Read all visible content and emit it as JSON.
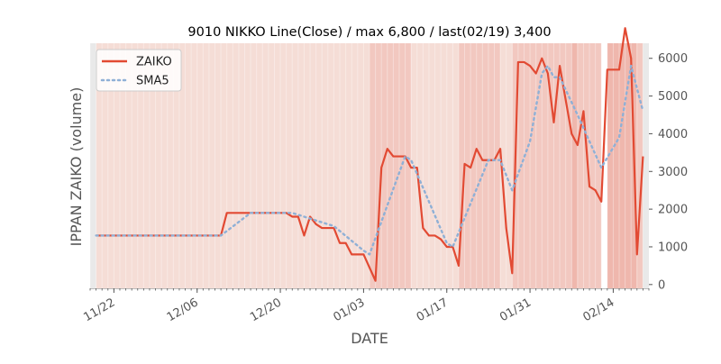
{
  "chart_data": {
    "type": "line",
    "title": "9010 NIKKO Line(Close) / max 6,800 / last(02/19) 3,400",
    "xlabel": "DATE",
    "ylabel": "IPPAN ZAIKO (volume)",
    "x_start": "2021-11-18",
    "x_end": "2022-02-20",
    "ylim": [
      -100,
      6400
    ],
    "y_ticks": [
      0,
      1000,
      2000,
      3000,
      4000,
      5000,
      6000
    ],
    "y_tick_labels": [
      "0",
      "1000",
      "2000",
      "3000",
      "4000",
      "5000",
      "6000"
    ],
    "x_ticks": [
      "2021-11-22",
      "2021-12-06",
      "2021-12-20",
      "2022-01-03",
      "2022-01-17",
      "2022-01-31",
      "2022-02-14"
    ],
    "x_tick_labels": [
      "11/22",
      "12/06",
      "12/20",
      "01/03",
      "01/17",
      "01/31",
      "02/14"
    ],
    "grid": false,
    "legend_position": "top-left",
    "colors": {
      "zaiko": "#e24a33",
      "sma5": "#8fb0d6",
      "band_light": "#f5ddd6",
      "band_mid": "#f2c8c0",
      "band_dark": "#efb7ad",
      "band_gray": "#e9e9e9"
    },
    "series": [
      {
        "name": "ZAIKO",
        "style": "solid",
        "points": [
          [
            "2021-11-19",
            1300
          ],
          [
            "2021-12-10",
            1300
          ],
          [
            "2021-12-11",
            1900
          ],
          [
            "2021-12-21",
            1900
          ],
          [
            "2021-12-22",
            1800
          ],
          [
            "2021-12-23",
            1800
          ],
          [
            "2021-12-24",
            1300
          ],
          [
            "2021-12-25",
            1800
          ],
          [
            "2021-12-26",
            1600
          ],
          [
            "2021-12-27",
            1500
          ],
          [
            "2021-12-29",
            1500
          ],
          [
            "2021-12-30",
            1100
          ],
          [
            "2021-12-31",
            1100
          ],
          [
            "2022-01-01",
            800
          ],
          [
            "2022-01-03",
            800
          ],
          [
            "2022-01-05",
            100
          ],
          [
            "2022-01-06",
            3100
          ],
          [
            "2022-01-07",
            3600
          ],
          [
            "2022-01-08",
            3400
          ],
          [
            "2022-01-10",
            3400
          ],
          [
            "2022-01-11",
            3100
          ],
          [
            "2022-01-12",
            3100
          ],
          [
            "2022-01-13",
            1500
          ],
          [
            "2022-01-14",
            1300
          ],
          [
            "2022-01-15",
            1300
          ],
          [
            "2022-01-16",
            1200
          ],
          [
            "2022-01-17",
            1000
          ],
          [
            "2022-01-18",
            1000
          ],
          [
            "2022-01-19",
            500
          ],
          [
            "2022-01-20",
            3200
          ],
          [
            "2022-01-21",
            3100
          ],
          [
            "2022-01-22",
            3600
          ],
          [
            "2022-01-23",
            3300
          ],
          [
            "2022-01-24",
            3300
          ],
          [
            "2022-01-25",
            3300
          ],
          [
            "2022-01-26",
            3600
          ],
          [
            "2022-01-27",
            1500
          ],
          [
            "2022-01-28",
            300
          ],
          [
            "2022-01-29",
            5900
          ],
          [
            "2022-01-30",
            5900
          ],
          [
            "2022-01-31",
            5800
          ],
          [
            "2022-02-01",
            5600
          ],
          [
            "2022-02-02",
            6000
          ],
          [
            "2022-02-03",
            5600
          ],
          [
            "2022-02-04",
            4300
          ],
          [
            "2022-02-05",
            5800
          ],
          [
            "2022-02-06",
            4900
          ],
          [
            "2022-02-07",
            4000
          ],
          [
            "2022-02-08",
            3700
          ],
          [
            "2022-02-09",
            4600
          ],
          [
            "2022-02-10",
            2600
          ],
          [
            "2022-02-11",
            2500
          ],
          [
            "2022-02-12",
            2200
          ],
          [
            "2022-02-13",
            5700
          ],
          [
            "2022-02-15",
            5700
          ],
          [
            "2022-02-16",
            6800
          ],
          [
            "2022-02-17",
            6000
          ],
          [
            "2022-02-18",
            800
          ],
          [
            "2022-02-19",
            3400
          ]
        ]
      },
      {
        "name": "SMA5",
        "style": "dotted",
        "points": [
          [
            "2021-11-19",
            1300
          ],
          [
            "2021-12-10",
            1300
          ],
          [
            "2021-12-15",
            1900
          ],
          [
            "2021-12-22",
            1900
          ],
          [
            "2021-12-29",
            1550
          ],
          [
            "2022-01-03",
            900
          ],
          [
            "2022-01-04",
            800
          ],
          [
            "2022-01-10",
            3400
          ],
          [
            "2022-01-11",
            3300
          ],
          [
            "2022-01-17",
            1100
          ],
          [
            "2022-01-18",
            1000
          ],
          [
            "2022-01-24",
            3300
          ],
          [
            "2022-01-26",
            3300
          ],
          [
            "2022-01-28",
            2500
          ],
          [
            "2022-01-31",
            3800
          ],
          [
            "2022-02-02",
            5600
          ],
          [
            "2022-02-03",
            5800
          ],
          [
            "2022-02-04",
            5500
          ],
          [
            "2022-02-05",
            5500
          ],
          [
            "2022-02-08",
            4500
          ],
          [
            "2022-02-12",
            3100
          ],
          [
            "2022-02-15",
            3900
          ],
          [
            "2022-02-17",
            5800
          ],
          [
            "2022-02-19",
            4600
          ]
        ]
      }
    ],
    "bands": [
      [
        "2021-11-18",
        "2021-11-19",
        "band_gray"
      ],
      [
        "2021-11-19",
        "2022-01-04",
        "band_light"
      ],
      [
        "2022-01-04",
        "2022-01-11",
        "band_mid"
      ],
      [
        "2022-01-11",
        "2022-01-18",
        "band_light"
      ],
      [
        "2022-01-18",
        "2022-01-19",
        "band_light"
      ],
      [
        "2022-01-19",
        "2022-01-26",
        "band_mid"
      ],
      [
        "2022-01-26",
        "2022-01-28",
        "band_light"
      ],
      [
        "2022-01-28",
        "2022-02-07",
        "band_mid"
      ],
      [
        "2022-02-07",
        "2022-02-08",
        "band_dark"
      ],
      [
        "2022-02-08",
        "2022-02-12",
        "band_mid"
      ],
      [
        "2022-02-13",
        "2022-02-18",
        "band_dark"
      ],
      [
        "2022-02-18",
        "2022-02-19",
        "band_mid"
      ],
      [
        "2022-02-19",
        "2022-02-20",
        "band_gray"
      ]
    ]
  }
}
